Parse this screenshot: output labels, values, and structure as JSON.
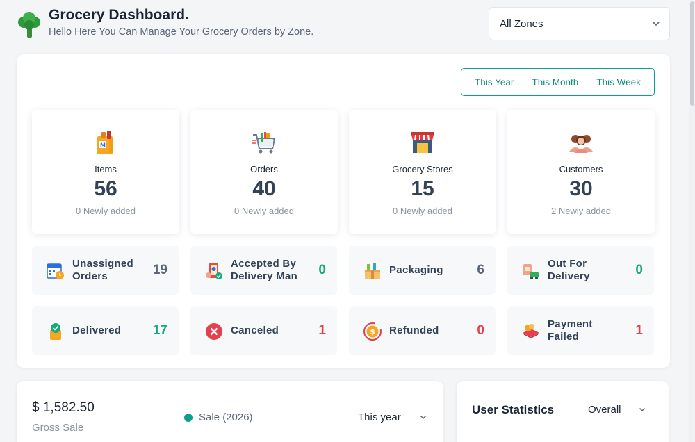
{
  "header": {
    "title": "Grocery Dashboard.",
    "subtitle": "Hello Here You Can Manage Your Grocery Orders by Zone.",
    "zone_select": {
      "value": "All Zones"
    }
  },
  "period_tabs": [
    {
      "label": "This Year"
    },
    {
      "label": "This Month"
    },
    {
      "label": "This Week"
    }
  ],
  "stats": [
    {
      "label": "Items",
      "value": "56",
      "newly": "0 Newly added",
      "icon": "grocery-bag-icon"
    },
    {
      "label": "Orders",
      "value": "40",
      "newly": "0 Newly added",
      "icon": "shopping-cart-icon"
    },
    {
      "label": "Grocery Stores",
      "value": "15",
      "newly": "0 Newly added",
      "icon": "store-icon"
    },
    {
      "label": "Customers",
      "value": "30",
      "newly": "2 Newly added",
      "icon": "customers-icon"
    }
  ],
  "statuses": [
    {
      "label": "Unassigned Orders",
      "count": "19",
      "count_color": "#5b6676",
      "icon": "calendar-clock-icon"
    },
    {
      "label": "Accepted By Delivery Man",
      "count": "0",
      "count_color": "#16a97a",
      "icon": "delivery-phone-icon"
    },
    {
      "label": "Packaging",
      "count": "6",
      "count_color": "#5b6676",
      "icon": "package-icon"
    },
    {
      "label": "Out For Delivery",
      "count": "0",
      "count_color": "#16a97a",
      "icon": "delivery-truck-icon"
    },
    {
      "label": "Delivered",
      "count": "17",
      "count_color": "#16a97a",
      "icon": "delivered-check-icon"
    },
    {
      "label": "Canceled",
      "count": "1",
      "count_color": "#e4414f",
      "icon": "cancel-icon"
    },
    {
      "label": "Refunded",
      "count": "0",
      "count_color": "#e4414f",
      "icon": "refund-icon"
    },
    {
      "label": "Payment Failed",
      "count": "1",
      "count_color": "#e4414f",
      "icon": "payment-failed-icon"
    }
  ],
  "gross_sale": {
    "amount": "$ 1,582.50",
    "label": "Gross Sale",
    "legend": "Sale (2026)",
    "period": "This year"
  },
  "user_statistics": {
    "title": "User Statistics",
    "filter": "Overall"
  },
  "colors": {
    "accent": "#0b9e8a",
    "success": "#16a97a",
    "danger": "#e4414f"
  }
}
